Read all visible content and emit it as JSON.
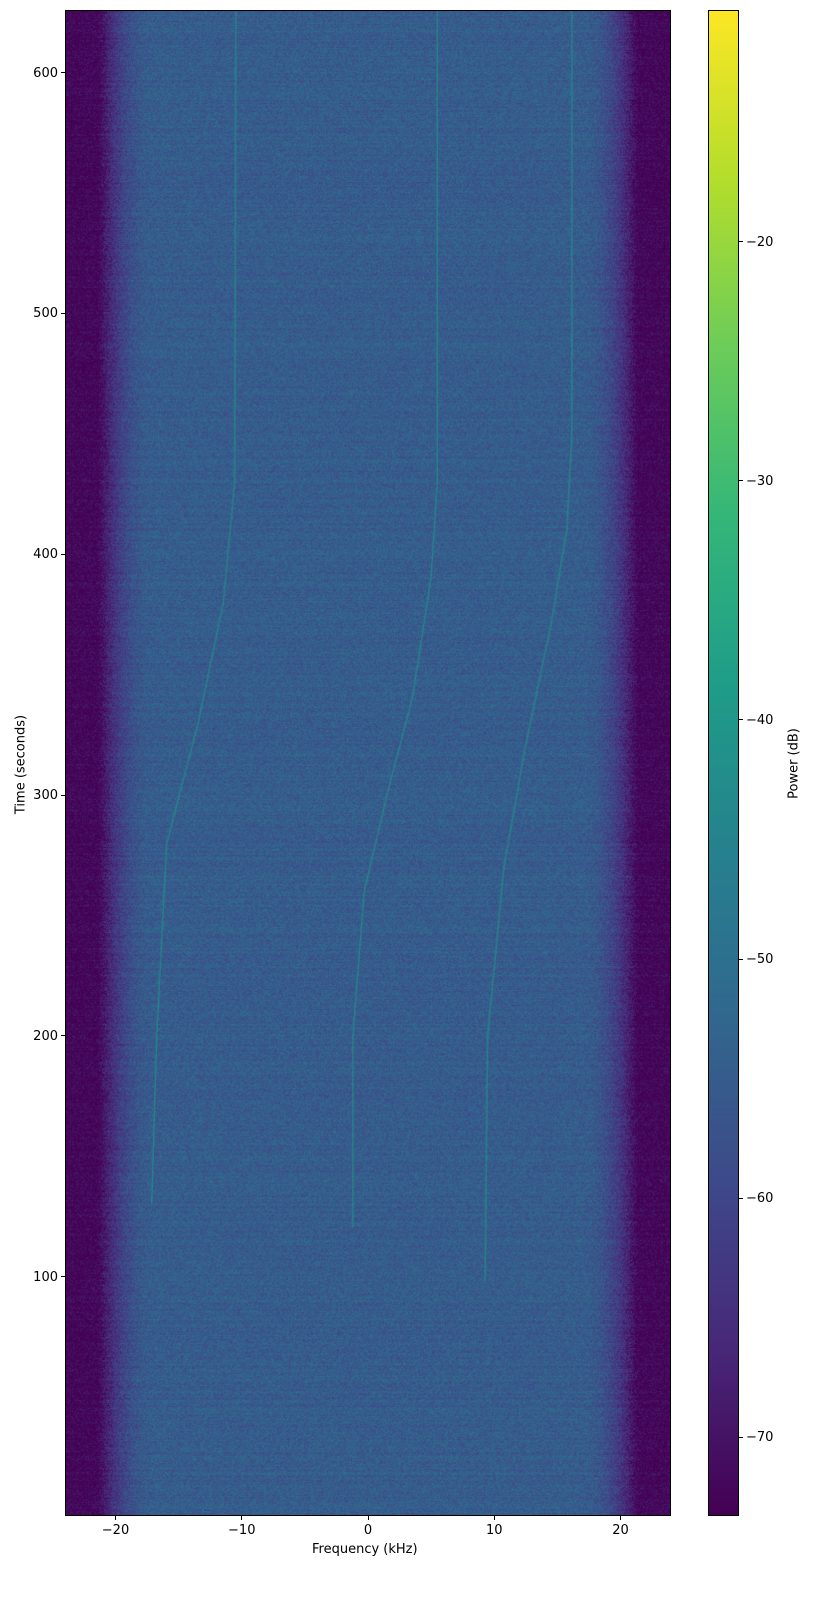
{
  "chart_data": {
    "type": "heatmap",
    "subtype": "spectrogram",
    "title": "",
    "xlabel": "Frequency (kHz)",
    "ylabel": "Time (seconds)",
    "xlim": [
      -24,
      24
    ],
    "ylim": [
      0.7,
      626
    ],
    "xticks": [
      -20,
      -10,
      0,
      10,
      20
    ],
    "xtick_labels": [
      "−20",
      "−10",
      "0",
      "10",
      "20"
    ],
    "yticks": [
      100,
      200,
      300,
      400,
      500,
      600
    ],
    "ytick_labels": [
      "100",
      "200",
      "300",
      "400",
      "500",
      "600"
    ],
    "grid": false,
    "colormap": "viridis",
    "colorbar": {
      "label": "Power (dB)",
      "range": [
        -73.3,
        -10.3
      ],
      "ticks": [
        -20,
        -30,
        -40,
        -50,
        -60,
        -70
      ],
      "tick_labels": [
        "−20",
        "−30",
        "−40",
        "−50",
        "−60",
        "−70"
      ],
      "position": "right"
    },
    "background_level_db": -55,
    "edge_level_db": -73,
    "passband_kHz": [
      -22,
      22
    ],
    "signal_traces": [
      {
        "points": [
          [
            -17.2,
            130
          ],
          [
            -16.8,
            200
          ],
          [
            -16,
            280
          ],
          [
            -13.5,
            330
          ],
          [
            -11.5,
            380
          ],
          [
            -10.6,
            430
          ],
          [
            -10.5,
            626
          ]
        ]
      },
      {
        "points": [
          [
            -1.2,
            120
          ],
          [
            -1.2,
            200
          ],
          [
            -0.3,
            260
          ],
          [
            1.5,
            300
          ],
          [
            3.5,
            340
          ],
          [
            5,
            390
          ],
          [
            5.5,
            430
          ],
          [
            5.5,
            626
          ]
        ]
      },
      {
        "points": [
          [
            9.3,
            98
          ],
          [
            9.5,
            200
          ],
          [
            10.8,
            270
          ],
          [
            12.5,
            320
          ],
          [
            14.5,
            370
          ],
          [
            15.8,
            410
          ],
          [
            16.2,
            450
          ],
          [
            16.2,
            626
          ]
        ]
      }
    ]
  }
}
